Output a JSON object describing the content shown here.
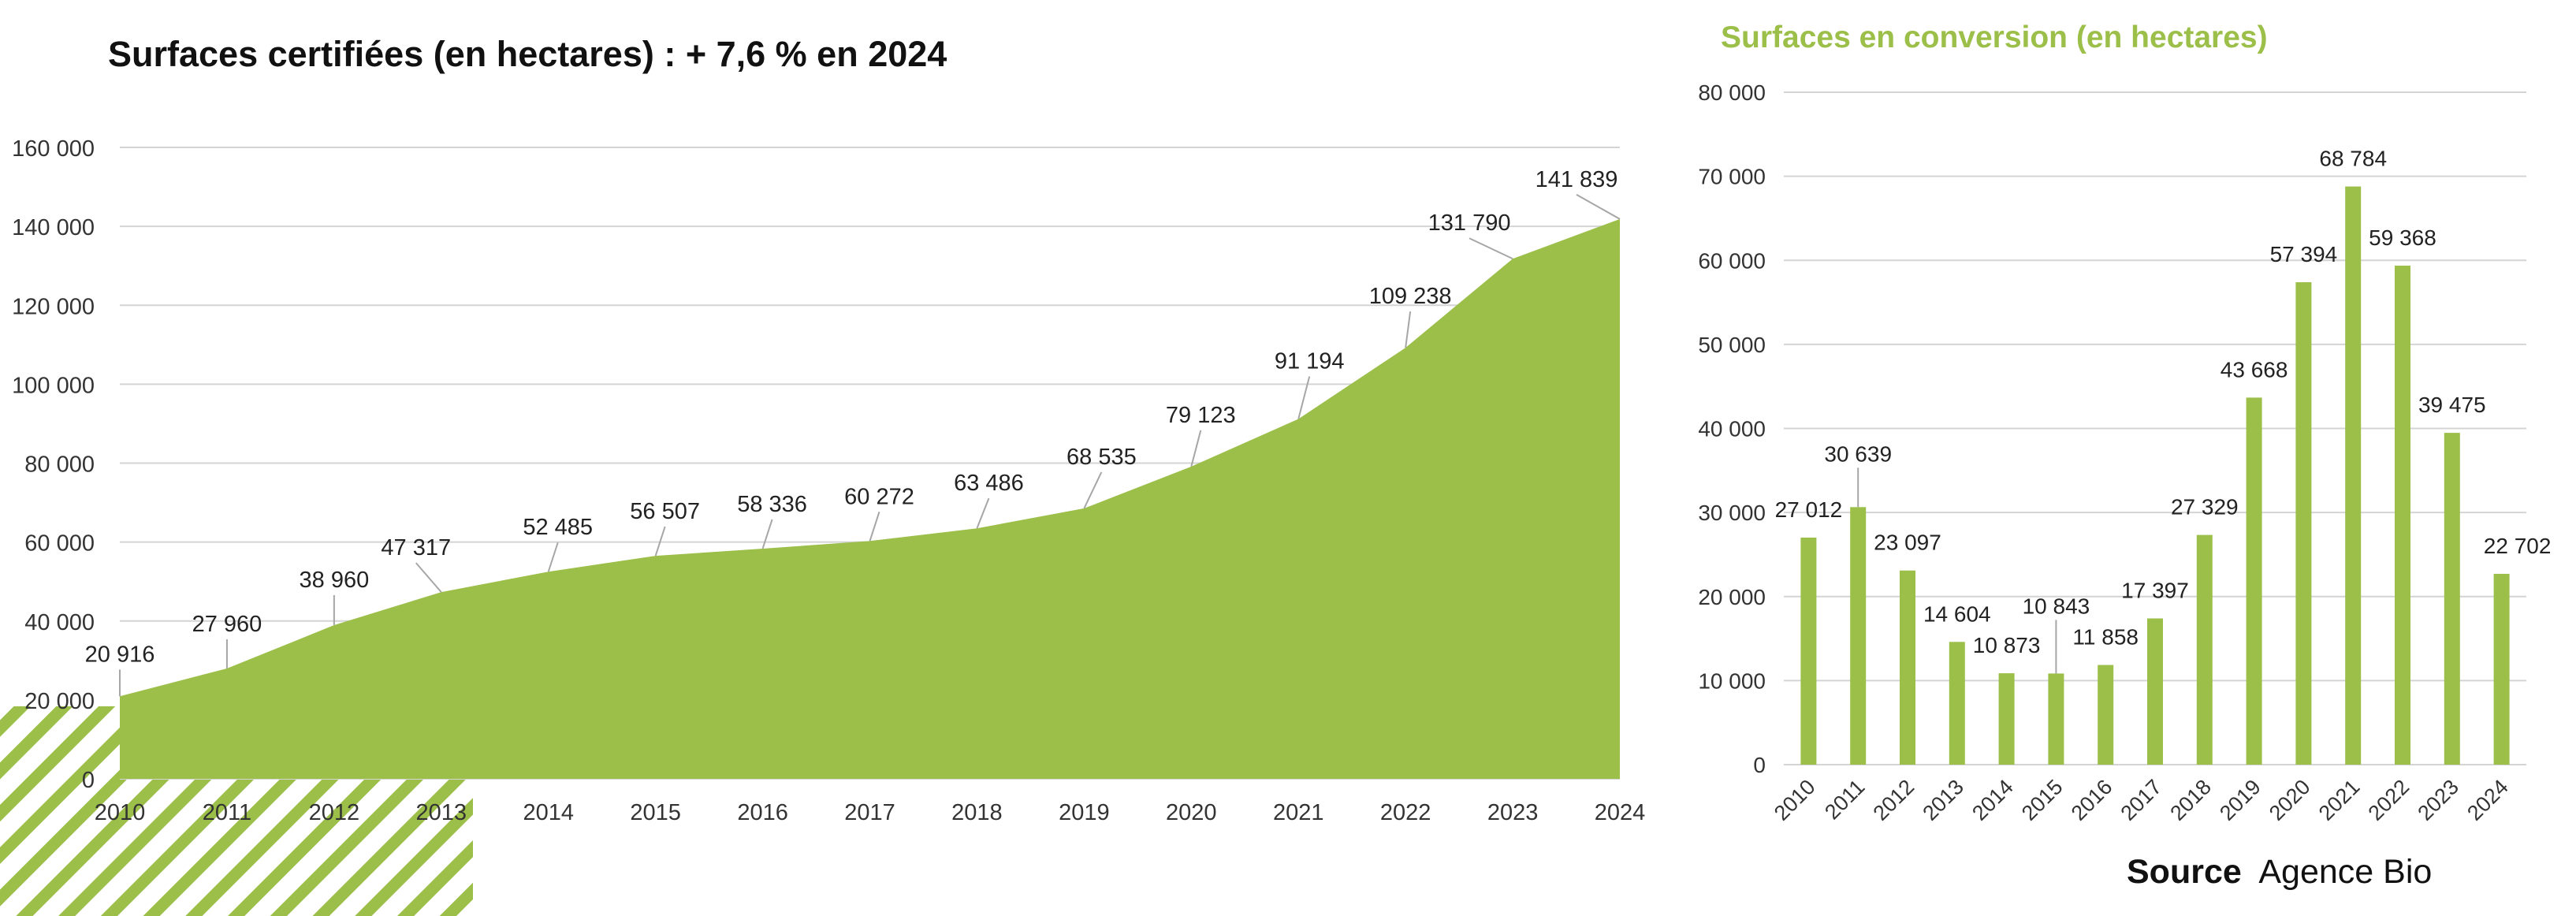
{
  "chart_data": [
    {
      "type": "area",
      "title": "Surfaces certifiées (en hectares) : + 7,6 % en 2024",
      "x": [
        "2010",
        "2011",
        "2012",
        "2013",
        "2014",
        "2015",
        "2016",
        "2017",
        "2018",
        "2019",
        "2020",
        "2021",
        "2022",
        "2023",
        "2024"
      ],
      "series": [
        {
          "values": [
            20916,
            27960,
            38960,
            47317,
            52485,
            56507,
            58336,
            60272,
            63486,
            68535,
            79123,
            91194,
            109238,
            131790,
            141839
          ]
        }
      ],
      "data_labels": [
        "20 916",
        "27 960",
        "38 960",
        "47 317",
        "52 485",
        "56 507",
        "58 336",
        "60 272",
        "63 486",
        "68 535",
        "79 123",
        "91 194",
        "109 238",
        "131 790",
        "141 839"
      ],
      "ylim": [
        0,
        160000
      ],
      "yticks": [
        0,
        20000,
        40000,
        60000,
        80000,
        100000,
        120000,
        140000,
        160000
      ],
      "ytick_labels": [
        "0",
        "20 000",
        "40 000",
        "60 000",
        "80 000",
        "100 000",
        "120 000",
        "140 000",
        "160 000"
      ],
      "grid": true,
      "color": "#9bbf48"
    },
    {
      "type": "bar",
      "title": "Surfaces en conversion (en hectares)",
      "categories": [
        "2010",
        "2011",
        "2012",
        "2013",
        "2014",
        "2015",
        "2016",
        "2017",
        "2018",
        "2019",
        "2020",
        "2021",
        "2022",
        "2023",
        "2024"
      ],
      "values": [
        27012,
        30639,
        23097,
        14604,
        10873,
        10843,
        11858,
        17397,
        27329,
        43668,
        57394,
        68784,
        59368,
        39475,
        22702
      ],
      "data_labels": [
        "27 012",
        "30 639",
        "23 097",
        "14 604",
        "10 873",
        "10 843",
        "11 858",
        "17 397",
        "27 329",
        "43 668",
        "57 394",
        "68 784",
        "59 368",
        "39 475",
        "22 702"
      ],
      "ylim": [
        0,
        80000
      ],
      "yticks": [
        0,
        10000,
        20000,
        30000,
        40000,
        50000,
        60000,
        70000,
        80000
      ],
      "ytick_labels": [
        "0",
        "10 000",
        "20 000",
        "30 000",
        "40 000",
        "50 000",
        "60 000",
        "70 000",
        "80 000"
      ],
      "grid": true,
      "color": "#9bbf48",
      "title_color": "#9bbf48"
    }
  ],
  "source": {
    "bold": "Source",
    "text": "Agence Bio"
  }
}
